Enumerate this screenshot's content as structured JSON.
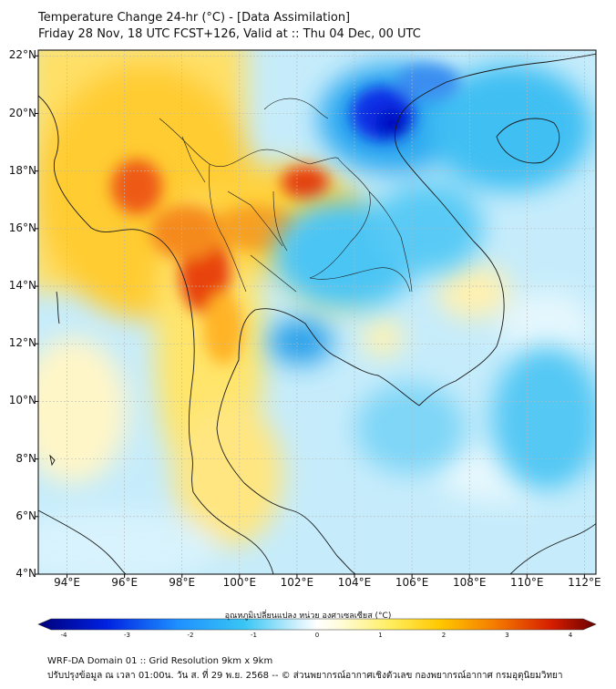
{
  "header": {
    "title": "Temperature Change 24-hr (°C) - [Data Assimilation]",
    "subtitle": "Friday 28 Nov, 18 UTC FCST+126, Valid at :: Thu 04 Dec, 00 UTC"
  },
  "map": {
    "lat_labels": [
      "22°N",
      "20°N",
      "18°N",
      "16°N",
      "14°N",
      "12°N",
      "10°N",
      "8°N",
      "6°N",
      "4°N"
    ],
    "lon_labels": [
      "94°E",
      "96°E",
      "98°E",
      "100°E",
      "102°E",
      "104°E",
      "106°E",
      "108°E",
      "110°E",
      "112°E"
    ],
    "lat_range": [
      4,
      22.2
    ],
    "lon_range": [
      93,
      112.4
    ]
  },
  "colorbar": {
    "title": "อุณหภูมิเปลี่ยนแปลง หน่วย องศาเซลเซียส (°C)",
    "ticks": [
      "-4",
      "-3",
      "-2",
      "-1",
      "0",
      "1",
      "2",
      "3",
      "4"
    ],
    "range": [
      -4,
      4
    ]
  },
  "footer": {
    "line1": "WRF-DA Domain 01 :: Grid Resolution 9km x 9km",
    "line2": "ปรับปรุงข้อมูล ณ เวลา 01:00น. วัน ส. ที่ 29 พ.ย. 2568 -- © ส่วนพยากรณ์อากาศเชิงตัวเลข กองพยากรณ์อากาศ กรมอุตุนิยมวิทยา"
  },
  "colors": {
    "cold_extreme": "#0000a0",
    "cold": "#1fb4ee",
    "neutral": "#ffffff",
    "warm": "#ffd200",
    "hot": "#e0300a",
    "hot_extreme": "#7a0000",
    "coastline": "#1a1a1a"
  }
}
